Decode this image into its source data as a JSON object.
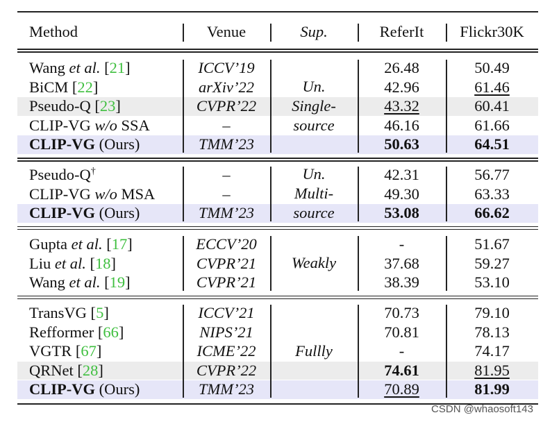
{
  "colors": {
    "highlight_ours": "#e6e6f8",
    "highlight_gray": "#ececec",
    "ref_green": "#3fbf3f"
  },
  "header": {
    "method": "Method",
    "venue": "Venue",
    "sup": "Sup.",
    "referit": "ReferIt",
    "flickr": "Flickr30K"
  },
  "groups": [
    {
      "sup_lines": [
        "Un.",
        "Single-",
        "source"
      ],
      "rows": [
        {
          "method": [
            {
              "t": "Wang "
            },
            {
              "t": "et al.",
              "it": true
            },
            {
              "t": " ["
            },
            {
              "t": "21",
              "ref": true
            },
            {
              "t": "]"
            }
          ],
          "venue": "ICCV’19",
          "referit": "26.48",
          "flickr": "50.49"
        },
        {
          "method": [
            {
              "t": "BiCM ["
            },
            {
              "t": "22",
              "ref": true
            },
            {
              "t": "]"
            }
          ],
          "venue": "arXiv’22",
          "referit": "42.96",
          "flickr": "61.46",
          "flickr_ul": true
        },
        {
          "method": [
            {
              "t": "Pseudo-Q ["
            },
            {
              "t": "23",
              "ref": true
            },
            {
              "t": "]"
            }
          ],
          "venue": "CVPR’22",
          "referit": "43.32",
          "referit_ul": true,
          "flickr": "60.41",
          "hl": "gray"
        },
        {
          "method": [
            {
              "t": "CLIP-VG "
            },
            {
              "t": "w/o",
              "it": true
            },
            {
              "t": " SSA"
            }
          ],
          "venue": "–",
          "referit": "46.16",
          "flickr": "61.66"
        },
        {
          "method": [
            {
              "t": "CLIP-VG",
              "b": true
            },
            {
              "t": " (Ours)"
            }
          ],
          "venue": "TMM’23",
          "referit": "50.63",
          "referit_b": true,
          "flickr": "64.51",
          "flickr_b": true,
          "hl": "ours"
        }
      ]
    },
    {
      "sup_lines": [
        "Un.",
        "Multi-",
        "source"
      ],
      "rows": [
        {
          "method": [
            {
              "t": "Pseudo-Q"
            },
            {
              "t": "†",
              "sup": true
            }
          ],
          "venue": "–",
          "referit": "42.31",
          "flickr": "56.77"
        },
        {
          "method": [
            {
              "t": "CLIP-VG "
            },
            {
              "t": "w/o",
              "it": true
            },
            {
              "t": " MSA"
            }
          ],
          "venue": "–",
          "referit": "49.30",
          "flickr": "63.33"
        },
        {
          "method": [
            {
              "t": "CLIP-VG",
              "b": true
            },
            {
              "t": " (Ours)"
            }
          ],
          "venue": "TMM’23",
          "referit": "53.08",
          "referit_b": true,
          "flickr": "66.62",
          "flickr_b": true,
          "hl": "ours"
        }
      ]
    },
    {
      "sup_lines": [
        "Weakly"
      ],
      "rows": [
        {
          "method": [
            {
              "t": "Gupta "
            },
            {
              "t": "et al.",
              "it": true
            },
            {
              "t": " ["
            },
            {
              "t": "17",
              "ref": true
            },
            {
              "t": "]"
            }
          ],
          "venue": "ECCV’20",
          "referit": "-",
          "flickr": "51.67"
        },
        {
          "method": [
            {
              "t": "Liu "
            },
            {
              "t": "et al.",
              "it": true
            },
            {
              "t": " ["
            },
            {
              "t": "18",
              "ref": true
            },
            {
              "t": "]"
            }
          ],
          "venue": "CVPR’21",
          "referit": "37.68",
          "flickr": "59.27"
        },
        {
          "method": [
            {
              "t": "Wang "
            },
            {
              "t": "et al.",
              "it": true
            },
            {
              "t": " ["
            },
            {
              "t": "19",
              "ref": true
            },
            {
              "t": "]"
            }
          ],
          "venue": "CVPR’21",
          "referit": "38.39",
          "flickr": "53.10"
        }
      ]
    },
    {
      "sup_lines": [
        "Fullly"
      ],
      "rows": [
        {
          "method": [
            {
              "t": "TransVG ["
            },
            {
              "t": "5",
              "ref": true
            },
            {
              "t": "]"
            }
          ],
          "venue": "ICCV’21",
          "referit": "70.73",
          "flickr": "79.10"
        },
        {
          "method": [
            {
              "t": "Refformer ["
            },
            {
              "t": "66",
              "ref": true
            },
            {
              "t": "]"
            }
          ],
          "venue": "NIPS’21",
          "referit": "70.81",
          "flickr": "78.13"
        },
        {
          "method": [
            {
              "t": "VGTR ["
            },
            {
              "t": "67",
              "ref": true
            },
            {
              "t": "]"
            }
          ],
          "venue": "ICME’22",
          "referit": "-",
          "flickr": "74.17"
        },
        {
          "method": [
            {
              "t": "QRNet ["
            },
            {
              "t": "28",
              "ref": true
            },
            {
              "t": "]"
            }
          ],
          "venue": "CVPR’22",
          "referit": "74.61",
          "referit_b": true,
          "flickr": "81.95",
          "flickr_ul": true,
          "hl": "gray"
        },
        {
          "method": [
            {
              "t": "CLIP-VG",
              "b": true
            },
            {
              "t": " (Ours)"
            }
          ],
          "venue": "TMM’23",
          "referit": "70.89",
          "referit_ul": true,
          "flickr": "81.99",
          "flickr_b": true,
          "hl": "ours"
        }
      ]
    }
  ],
  "watermark": "CSDN @whaosoft143"
}
